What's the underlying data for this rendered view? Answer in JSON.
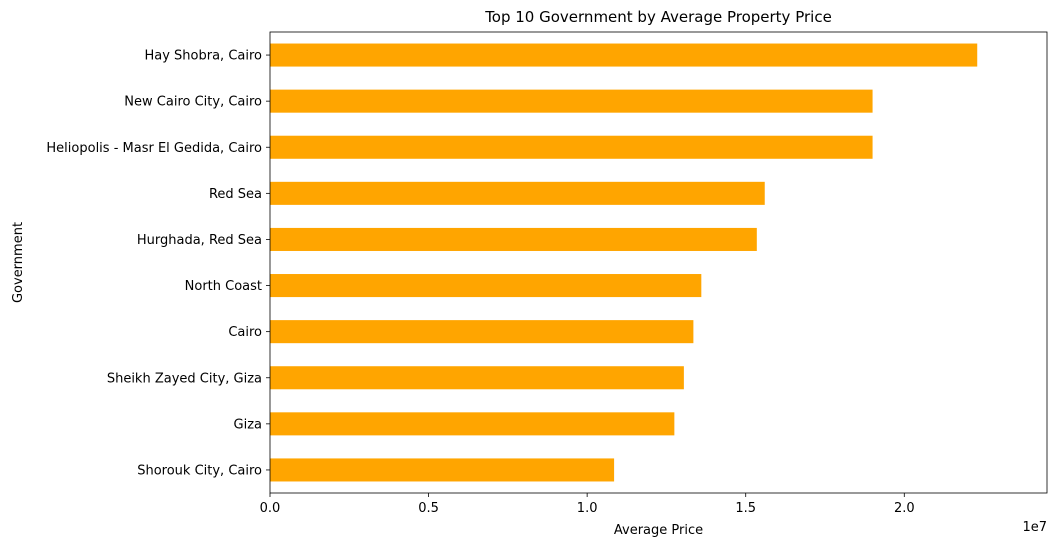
{
  "chart_data": {
    "type": "bar",
    "orientation": "horizontal",
    "title": "Top 10 Government by Average Property Price",
    "xlabel": "Average Price",
    "ylabel": "Government",
    "x_scale_label": "1e7",
    "xlim": [
      0,
      24500000
    ],
    "x_ticks": [
      0,
      5000000,
      10000000,
      15000000,
      20000000
    ],
    "x_tick_labels": [
      "0.0",
      "0.5",
      "1.0",
      "1.5",
      "2.0"
    ],
    "bar_color": "#FFA500",
    "grid": false,
    "categories": [
      "Hay Shobra, Cairo",
      "New Cairo City, Cairo",
      "Heliopolis - Masr El Gedida, Cairo",
      "Red Sea",
      "Hurghada, Red Sea",
      "North Coast",
      "Cairo",
      "Sheikh Zayed City, Giza",
      "Giza",
      "Shorouk City, Cairo"
    ],
    "values": [
      22300000,
      19000000,
      19000000,
      15600000,
      15350000,
      13600000,
      13350000,
      13050000,
      12750000,
      10850000
    ]
  }
}
